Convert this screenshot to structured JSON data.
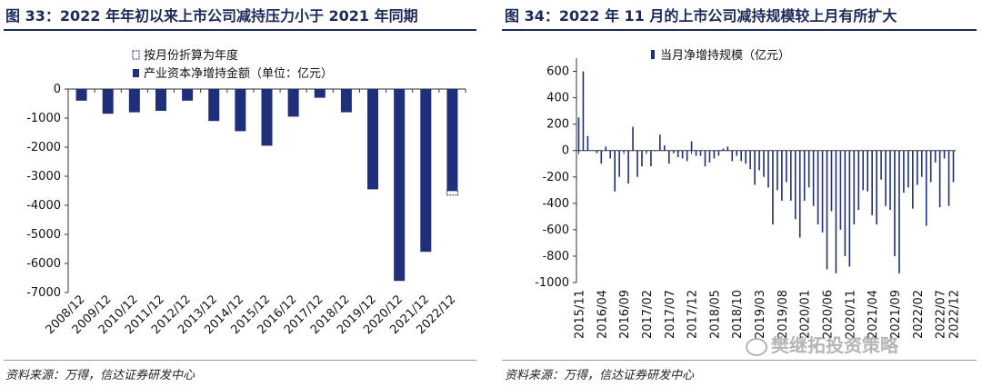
{
  "figure1": {
    "title": "图 33：2022 年年初以来上市公司减持压力小于 2021 年同期",
    "source": "资料来源：万得，信达证券研发中心"
  },
  "figure2": {
    "title": "图 34：2022 年 11 月的上市公司减持规模较上月有所扩大",
    "source": "资料来源：万得，信达证券研发中心"
  },
  "watermark": "樊继拓投资策略",
  "colors": {
    "bar": "#1f2f7a",
    "title": "#1b2a5a"
  },
  "chart_data": [
    {
      "type": "bar",
      "title": "产业资本净增持金额",
      "legend": [
        "按月份折算为年度",
        "产业资本净增持金额（单位：亿元）"
      ],
      "categories": [
        "2008/12",
        "2009/12",
        "2010/12",
        "2011/12",
        "2012/12",
        "2013/12",
        "2014/12",
        "2015/12",
        "2016/12",
        "2017/12",
        "2018/12",
        "2019/12",
        "2020/12",
        "2021/12",
        "2022/12"
      ],
      "values": [
        -400,
        -850,
        -800,
        -750,
        -400,
        -1100,
        -1450,
        -1950,
        -950,
        -300,
        -800,
        -3450,
        -6600,
        -5600,
        -3500
      ],
      "annualized_2022": -3650,
      "ylim": [
        -7000,
        0
      ],
      "yticks": [
        0,
        -1000,
        -2000,
        -3000,
        -4000,
        -5000,
        -6000,
        -7000
      ]
    },
    {
      "type": "bar",
      "title": "当月净增持规模（亿元）",
      "legend": [
        "当月净增持规模（亿元）"
      ],
      "tick_labels": [
        "2015/11",
        "2016/04",
        "2016/09",
        "2017/02",
        "2017/07",
        "2017/12",
        "2018/05",
        "2018/10",
        "2019/03",
        "2019/08",
        "2020/01",
        "2020/06",
        "2020/11",
        "2021/04",
        "2021/09",
        "2022/02",
        "2022/07",
        "2022/12"
      ],
      "start_month": "2015/11",
      "values": [
        250,
        600,
        110,
        0,
        -20,
        -100,
        30,
        -60,
        -310,
        -200,
        -10,
        -250,
        180,
        -200,
        -120,
        -10,
        -120,
        -5,
        120,
        40,
        -100,
        -20,
        -50,
        -60,
        -80,
        70,
        -40,
        -40,
        -120,
        -90,
        -60,
        -40,
        15,
        30,
        -80,
        -40,
        -80,
        -100,
        -140,
        -260,
        -150,
        -200,
        -280,
        -560,
        -300,
        -380,
        -240,
        -380,
        -520,
        -660,
        -380,
        -280,
        -420,
        -560,
        -620,
        -900,
        -460,
        -930,
        -600,
        -800,
        -880,
        -560,
        -450,
        -300,
        -310,
        -490,
        -560,
        -220,
        -420,
        -450,
        -800,
        -930,
        -320,
        -280,
        -440,
        -260,
        -200,
        -570,
        -240,
        -90,
        -430,
        -60,
        -420,
        -240
      ],
      "ylim": [
        -1000,
        700
      ],
      "yticks": [
        600,
        400,
        200,
        0,
        -200,
        -400,
        -600,
        -800,
        -1000
      ]
    }
  ]
}
